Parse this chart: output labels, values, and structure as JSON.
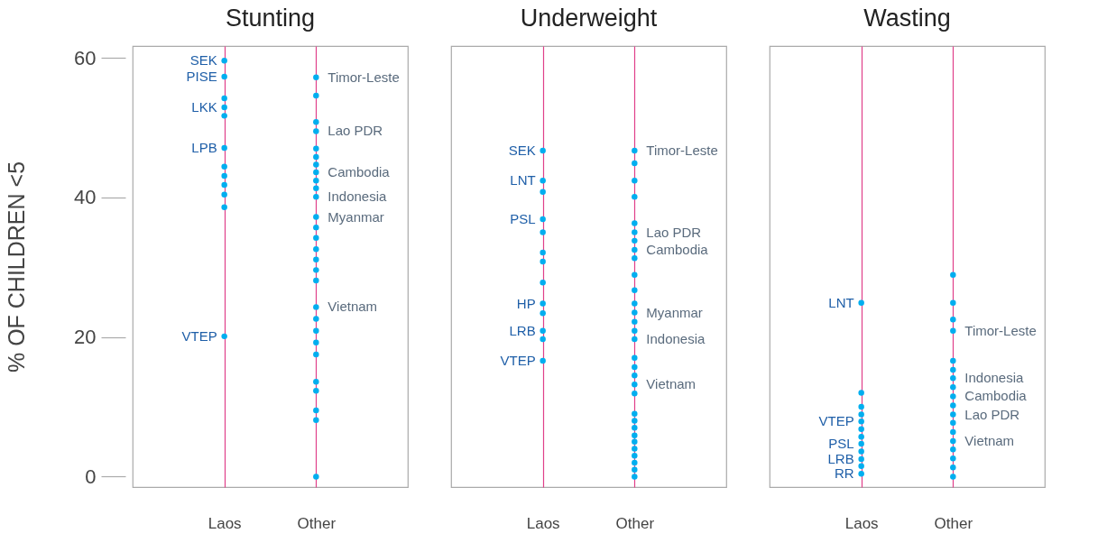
{
  "chart_data": [
    {
      "type": "scatter",
      "title": "Stunting",
      "ylabel": "% OF CHILDREN <5",
      "categories": [
        "Laos",
        "Other"
      ],
      "ylim": [
        -1.5,
        61.7
      ],
      "yticks": [
        0,
        20,
        40,
        60
      ],
      "grid": "x",
      "legend": false,
      "marker": "circle",
      "series": [
        {
          "color": "#00aeef",
          "x": [
            "Laos",
            "Laos",
            "Laos",
            "Laos",
            "Laos",
            "Laos",
            "Laos",
            "Laos",
            "Laos",
            "Laos",
            "Laos",
            "Laos"
          ],
          "values": [
            59.6,
            57.3,
            54.2,
            52.9,
            51.7,
            47.1,
            44.4,
            43.1,
            41.8,
            40.4,
            38.6,
            20.1
          ]
        },
        {
          "color": "#00aeef",
          "x": [
            "Other",
            "Other",
            "Other",
            "Other",
            "Other",
            "Other",
            "Other",
            "Other",
            "Other",
            "Other",
            "Other",
            "Other",
            "Other",
            "Other",
            "Other",
            "Other",
            "Other",
            "Other",
            "Other",
            "Other",
            "Other",
            "Other",
            "Other",
            "Other",
            "Other",
            "Other",
            "Other",
            "Other"
          ],
          "values": [
            57.2,
            54.6,
            50.8,
            49.5,
            47.0,
            45.8,
            44.7,
            43.6,
            42.4,
            41.3,
            40.1,
            37.2,
            35.7,
            34.2,
            32.6,
            31.1,
            29.6,
            28.1,
            24.3,
            22.6,
            20.9,
            19.2,
            17.5,
            13.6,
            12.3,
            9.5,
            8.1,
            0
          ]
        }
      ],
      "annotations": [
        {
          "text": "SEK",
          "x": "Laos",
          "y": 59.6
        },
        {
          "text": "PISE",
          "x": "Laos",
          "y": 57.3
        },
        {
          "text": "LKK",
          "x": "Laos",
          "y": 52.9
        },
        {
          "text": "LPB",
          "x": "Laos",
          "y": 47.1
        },
        {
          "text": "VTEP",
          "x": "Laos",
          "y": 20.1
        },
        {
          "text": "Timor-Leste",
          "x": "Other",
          "y": 57.2
        },
        {
          "text": "Lao PDR",
          "x": "Other",
          "y": 49.5
        },
        {
          "text": "Cambodia",
          "x": "Other",
          "y": 43.6
        },
        {
          "text": "Indonesia",
          "x": "Other",
          "y": 40.1
        },
        {
          "text": "Myanmar",
          "x": "Other",
          "y": 37.2
        },
        {
          "text": "Vietnam",
          "x": "Other",
          "y": 24.3
        }
      ]
    },
    {
      "type": "scatter",
      "title": "Underweight",
      "categories": [
        "Laos",
        "Other"
      ],
      "ylim": [
        -1.5,
        61.7
      ],
      "tick_labels": "x",
      "grid": "x",
      "legend": false,
      "marker": "circle",
      "series": [
        {
          "color": "#00aeef",
          "x": [
            "Laos",
            "Laos",
            "Laos",
            "Laos",
            "Laos",
            "Laos",
            "Laos",
            "Laos",
            "Laos",
            "Laos",
            "Laos",
            "Laos",
            "Laos"
          ],
          "values": [
            46.7,
            42.4,
            40.8,
            36.9,
            35.0,
            32.1,
            30.8,
            27.8,
            24.8,
            23.4,
            20.9,
            19.7,
            16.6
          ]
        },
        {
          "color": "#00aeef",
          "x": [
            "Other",
            "Other",
            "Other",
            "Other",
            "Other",
            "Other",
            "Other",
            "Other",
            "Other",
            "Other",
            "Other",
            "Other",
            "Other",
            "Other",
            "Other",
            "Other",
            "Other",
            "Other",
            "Other",
            "Other",
            "Other",
            "Other",
            "Other",
            "Other",
            "Other",
            "Other",
            "Other",
            "Other",
            "Other",
            "Other",
            "Other"
          ],
          "values": [
            46.7,
            44.9,
            42.4,
            40.1,
            36.3,
            35.0,
            33.8,
            32.5,
            31.3,
            28.9,
            26.7,
            24.8,
            23.5,
            22.2,
            20.9,
            19.7,
            17.0,
            15.7,
            14.5,
            13.2,
            11.9,
            9.0,
            8.0,
            7.0,
            5.9,
            5.0,
            4.0,
            3.0,
            2.0,
            1.0,
            0
          ]
        }
      ],
      "annotations": [
        {
          "text": "SEK",
          "x": "Laos",
          "y": 46.7
        },
        {
          "text": "LNT",
          "x": "Laos",
          "y": 42.4
        },
        {
          "text": "PSL",
          "x": "Laos",
          "y": 36.9
        },
        {
          "text": "HP",
          "x": "Laos",
          "y": 24.8
        },
        {
          "text": "LRB",
          "x": "Laos",
          "y": 20.9
        },
        {
          "text": "VTEP",
          "x": "Laos",
          "y": 16.6
        },
        {
          "text": "Timor-Leste",
          "x": "Other",
          "y": 46.7
        },
        {
          "text": "Lao PDR",
          "x": "Other",
          "y": 35.0
        },
        {
          "text": "Cambodia",
          "x": "Other",
          "y": 32.5
        },
        {
          "text": "Myanmar",
          "x": "Other",
          "y": 23.5
        },
        {
          "text": "Indonesia",
          "x": "Other",
          "y": 19.7
        },
        {
          "text": "Vietnam",
          "x": "Other",
          "y": 13.2
        }
      ]
    },
    {
      "type": "scatter",
      "title": "Wasting",
      "categories": [
        "Laos",
        "Other"
      ],
      "ylim": [
        -1.5,
        61.7
      ],
      "tick_labels": "x",
      "grid": "x",
      "legend": false,
      "marker": "circle",
      "series": [
        {
          "color": "#00aeef",
          "x": [
            "Laos",
            "Laos",
            "Laos",
            "Laos",
            "Laos",
            "Laos",
            "Laos",
            "Laos",
            "Laos",
            "Laos",
            "Laos",
            "Laos"
          ],
          "values": [
            24.9,
            12.0,
            10.0,
            8.9,
            7.9,
            6.8,
            5.7,
            4.7,
            3.6,
            2.5,
            1.5,
            0.4
          ]
        },
        {
          "color": "#00aeef",
          "x": [
            "Other",
            "Other",
            "Other",
            "Other",
            "Other",
            "Other",
            "Other",
            "Other",
            "Other",
            "Other",
            "Other",
            "Other",
            "Other",
            "Other",
            "Other",
            "Other",
            "Other",
            "Other"
          ],
          "values": [
            28.9,
            24.9,
            22.5,
            20.9,
            16.6,
            15.3,
            14.1,
            12.8,
            11.5,
            10.2,
            8.9,
            7.7,
            6.4,
            5.1,
            3.9,
            2.6,
            1.3,
            0
          ]
        }
      ],
      "annotations": [
        {
          "text": "LNT",
          "x": "Laos",
          "y": 24.9
        },
        {
          "text": "VTEP",
          "x": "Laos",
          "y": 7.9
        },
        {
          "text": "PSL",
          "x": "Laos",
          "y": 4.7
        },
        {
          "text": "LRB",
          "x": "Laos",
          "y": 2.5
        },
        {
          "text": "RR",
          "x": "Laos",
          "y": 0.4
        },
        {
          "text": "Timor-Leste",
          "x": "Other",
          "y": 20.9
        },
        {
          "text": "Indonesia",
          "x": "Other",
          "y": 14.1
        },
        {
          "text": "Cambodia",
          "x": "Other",
          "y": 11.5
        },
        {
          "text": "Lao PDR",
          "x": "Other",
          "y": 8.9
        },
        {
          "text": "Vietnam",
          "x": "Other",
          "y": 5.1
        }
      ]
    }
  ]
}
